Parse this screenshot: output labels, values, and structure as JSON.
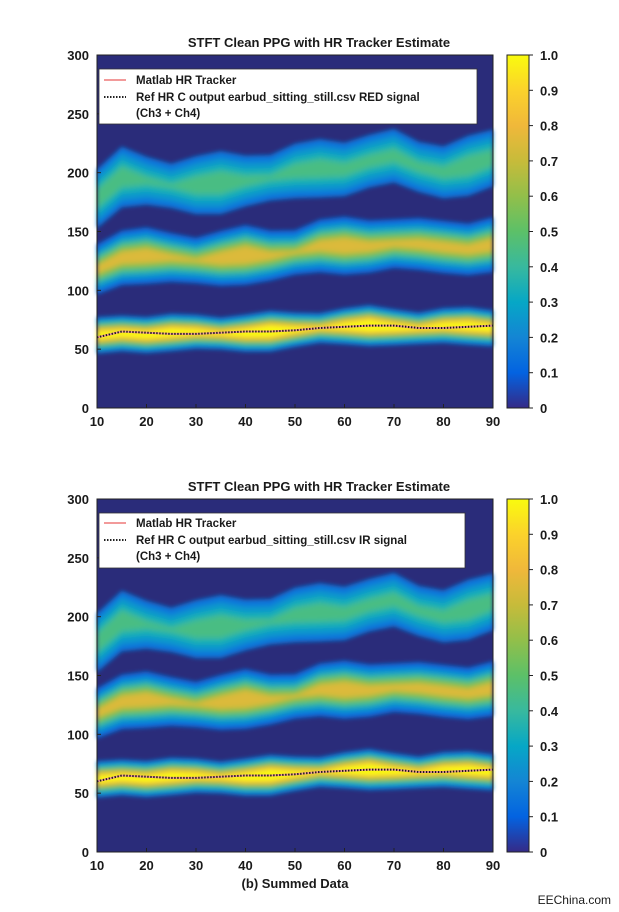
{
  "chart_data": [
    {
      "type": "heatmap",
      "title": "STFT Clean PPG with HR Tracker Estimate",
      "xlabel": "",
      "ylabel": "",
      "xlim": [
        10,
        90
      ],
      "ylim": [
        0,
        300
      ],
      "x_ticks": [
        "10",
        "20",
        "30",
        "40",
        "50",
        "60",
        "70",
        "80",
        "90"
      ],
      "y_ticks": [
        "0",
        "50",
        "100",
        "150",
        "200",
        "250",
        "300"
      ],
      "colorbar": {
        "range": [
          0,
          1
        ],
        "ticks": [
          "0",
          "0.1",
          "0.2",
          "0.3",
          "0.4",
          "0.5",
          "0.6",
          "0.7",
          "0.8",
          "0.9",
          "1.0"
        ]
      },
      "legend": {
        "placement": "top-left",
        "entries": [
          {
            "label": "Matlab HR Tracker",
            "color": "#f29a9a",
            "style": "solid"
          },
          {
            "label": "Ref HR C output earbud_sitting_still.csv RED signal",
            "label2": "(Ch3 + Ch4)",
            "color": "#222222",
            "style": "dotted"
          }
        ]
      },
      "x": [
        10,
        15,
        20,
        25,
        30,
        35,
        40,
        45,
        50,
        55,
        60,
        65,
        70,
        75,
        80,
        85,
        90
      ],
      "series": [
        {
          "name": "Matlab HR Tracker",
          "values": [
            60,
            65,
            64,
            63,
            63,
            64,
            65,
            65,
            66,
            68,
            69,
            70,
            70,
            68,
            68,
            69,
            70
          ]
        },
        {
          "name": "Ref HR C output earbud_sitting_still.csv RED signal (Ch3 + Ch4)",
          "values": [
            60,
            65,
            64,
            63,
            63,
            64,
            65,
            65,
            66,
            68,
            69,
            70,
            70,
            68,
            68,
            69,
            70
          ]
        }
      ],
      "bands": [
        {
          "harmonic": 1,
          "center": [
            60,
            65,
            64,
            63,
            63,
            64,
            65,
            65,
            66,
            68,
            69,
            70,
            70,
            68,
            68,
            69,
            70
          ],
          "peak": 1.0
        },
        {
          "harmonic": 2,
          "center": [
            120,
            130,
            128,
            126,
            126,
            128,
            130,
            130,
            132,
            136,
            138,
            140,
            140,
            136,
            136,
            138,
            140
          ],
          "peak": 0.75
        },
        {
          "harmonic": 3,
          "center": [
            180,
            195,
            192,
            189,
            189,
            192,
            195,
            195,
            198,
            204,
            207,
            210,
            210,
            204,
            204,
            207,
            210
          ],
          "peak": 0.45
        }
      ]
    },
    {
      "type": "heatmap",
      "title": "STFT Clean PPG with HR Tracker Estimate",
      "xlabel": "(b) Summed Data",
      "ylabel": "",
      "xlim": [
        10,
        90
      ],
      "ylim": [
        0,
        300
      ],
      "x_ticks": [
        "10",
        "20",
        "30",
        "40",
        "50",
        "60",
        "70",
        "80",
        "90"
      ],
      "y_ticks": [
        "0",
        "50",
        "100",
        "150",
        "200",
        "250",
        "300"
      ],
      "colorbar": {
        "range": [
          0,
          1
        ],
        "ticks": [
          "0",
          "0.1",
          "0.2",
          "0.3",
          "0.4",
          "0.5",
          "0.6",
          "0.7",
          "0.8",
          "0.9",
          "1.0"
        ]
      },
      "legend": {
        "placement": "top-left",
        "entries": [
          {
            "label": "Matlab HR Tracker",
            "color": "#f29a9a",
            "style": "solid"
          },
          {
            "label": "Ref HR C output earbud_sitting_still.csv IR signal",
            "label2": "(Ch3 + Ch4)",
            "color": "#222222",
            "style": "dotted"
          }
        ]
      },
      "x": [
        10,
        15,
        20,
        25,
        30,
        35,
        40,
        45,
        50,
        55,
        60,
        65,
        70,
        75,
        80,
        85,
        90
      ],
      "series": [
        {
          "name": "Matlab HR Tracker",
          "values": [
            60,
            65,
            64,
            63,
            63,
            64,
            65,
            65,
            66,
            68,
            69,
            70,
            70,
            68,
            68,
            69,
            70
          ]
        },
        {
          "name": "Ref HR C output earbud_sitting_still.csv IR signal (Ch3 + Ch4)",
          "values": [
            60,
            65,
            64,
            63,
            63,
            64,
            65,
            65,
            66,
            68,
            69,
            70,
            70,
            68,
            68,
            69,
            70
          ]
        }
      ],
      "bands": [
        {
          "harmonic": 1,
          "center": [
            60,
            65,
            64,
            63,
            63,
            64,
            65,
            65,
            66,
            68,
            69,
            70,
            70,
            68,
            68,
            69,
            70
          ],
          "peak": 1.0
        },
        {
          "harmonic": 2,
          "center": [
            120,
            130,
            128,
            126,
            126,
            128,
            130,
            130,
            132,
            136,
            138,
            140,
            140,
            136,
            136,
            138,
            140
          ],
          "peak": 0.75
        },
        {
          "harmonic": 3,
          "center": [
            180,
            195,
            192,
            189,
            189,
            192,
            195,
            195,
            198,
            204,
            207,
            210,
            210,
            204,
            204,
            207,
            210
          ],
          "peak": 0.45
        }
      ]
    }
  ],
  "watermark": "EEChina.com"
}
